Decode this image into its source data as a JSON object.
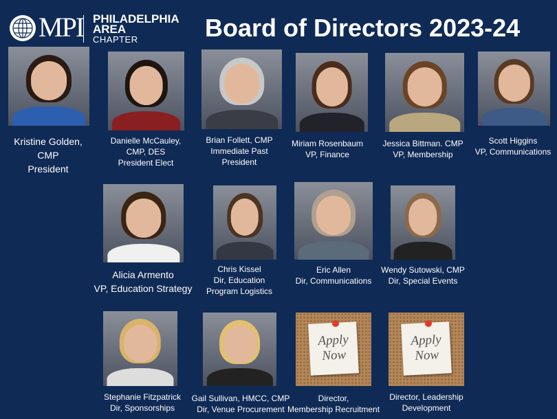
{
  "logo": {
    "org": "MPI",
    "line1": "PHILADELPHIA",
    "line2": "AREA",
    "line3": "CHAPTER"
  },
  "title": "Board of Directors 2023-24",
  "colors": {
    "background": "#0f2a55",
    "text": "#ffffff",
    "pin": "#e03b2a"
  },
  "members": [
    {
      "lines": [
        "Kristine Golden,",
        "CMP",
        "President"
      ]
    },
    {
      "lines": [
        "Danielle McCauley,",
        "CMP, DES",
        "President Elect"
      ]
    },
    {
      "lines": [
        "Brian Follett, CMP",
        "Immediate Past",
        "President"
      ]
    },
    {
      "lines": [
        "Miriam Rosenbaum",
        "VP, Finance"
      ]
    },
    {
      "lines": [
        "Jessica Bittman. CMP",
        "VP, Membership"
      ]
    },
    {
      "lines": [
        "Scott Higgins",
        "VP, Communications"
      ]
    },
    {
      "lines": [
        "Alicia Armento",
        "VP, Education Strategy"
      ]
    },
    {
      "lines": [
        "Chris Kissel",
        "Dir, Education",
        "Program Logistics"
      ]
    },
    {
      "lines": [
        "Eric Allen",
        "Dir, Communications"
      ]
    },
    {
      "lines": [
        "Wendy Sutowski, CMP",
        "Dir, Special Events"
      ]
    },
    {
      "lines": [
        "Stephanie Fitzpatrick",
        "Dir, Sponsorships"
      ]
    },
    {
      "lines": [
        "Gail Sullivan, HMCC, CMP",
        "Dir, Venue Procurement"
      ]
    },
    {
      "lines": [
        "Director,",
        "Membership Recruitment"
      ],
      "image_text": [
        "Apply",
        "Now"
      ]
    },
    {
      "lines": [
        "Director, Leadership",
        "Development"
      ],
      "image_text": [
        "Apply",
        "Now"
      ]
    }
  ]
}
